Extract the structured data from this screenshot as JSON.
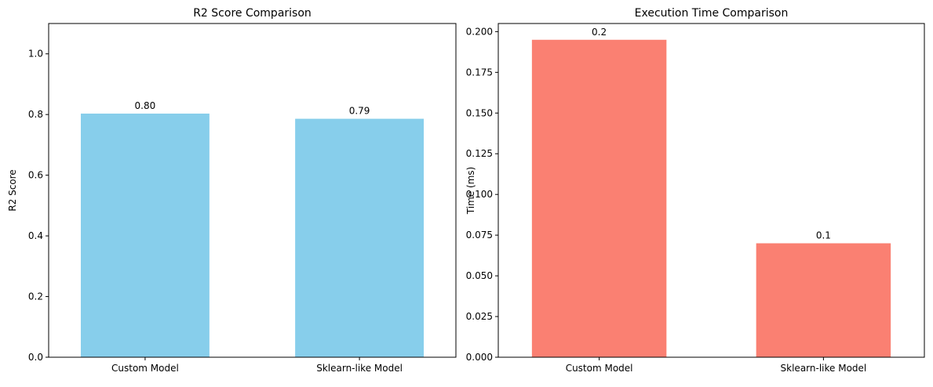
{
  "chart_data": [
    {
      "type": "bar",
      "title": "R2 Score Comparison",
      "xlabel": "",
      "ylabel": "R2 Score",
      "categories": [
        "Custom Model",
        "Sklearn-like Model"
      ],
      "values": [
        0.803,
        0.786
      ],
      "data_labels": [
        "0.80",
        "0.79"
      ],
      "ylim": [
        0,
        1.1
      ],
      "yticks": [
        0.0,
        0.2,
        0.4,
        0.6,
        0.8,
        1.0
      ],
      "ytick_labels": [
        "0.0",
        "0.2",
        "0.4",
        "0.6",
        "0.8",
        "1.0"
      ],
      "color": "#87CEEB",
      "grid": false
    },
    {
      "type": "bar",
      "title": "Execution Time Comparison",
      "xlabel": "",
      "ylabel": "Time (ms)",
      "categories": [
        "Custom Model",
        "Sklearn-like Model"
      ],
      "values": [
        0.195,
        0.07
      ],
      "data_labels": [
        "0.2",
        "0.1"
      ],
      "ylim": [
        0,
        0.205
      ],
      "yticks": [
        0.0,
        0.025,
        0.05,
        0.075,
        0.1,
        0.125,
        0.15,
        0.175,
        0.2
      ],
      "ytick_labels": [
        "0.000",
        "0.025",
        "0.050",
        "0.075",
        "0.100",
        "0.125",
        "0.150",
        "0.175",
        "0.200"
      ],
      "color": "#FA8072",
      "grid": false
    }
  ]
}
